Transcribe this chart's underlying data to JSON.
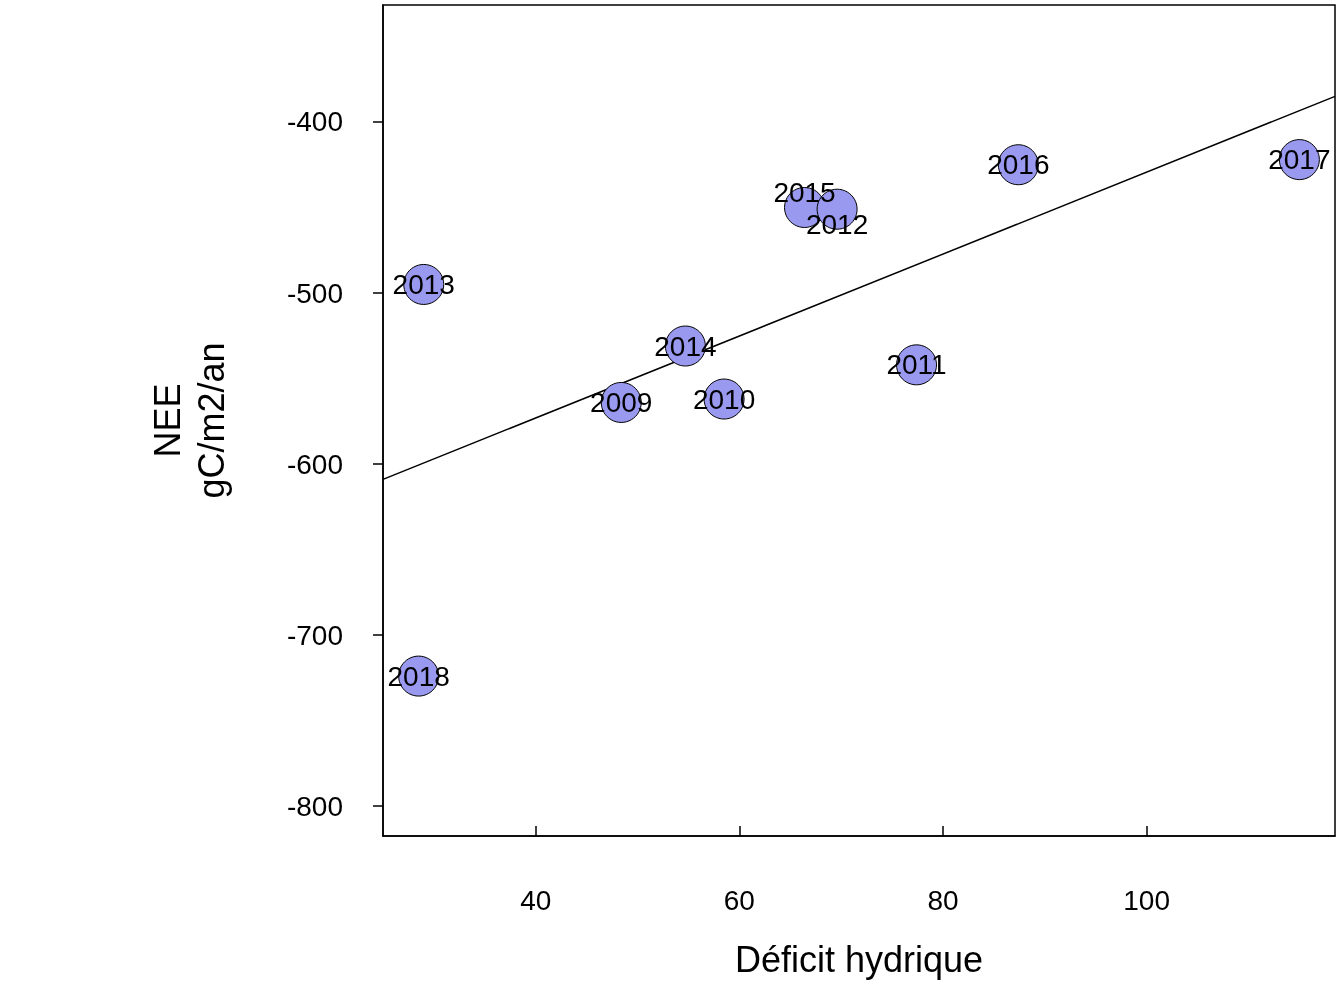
{
  "chart_data": {
    "type": "scatter",
    "xlabel": "Déficit hydrique",
    "ylabel": "NEE\ngC/m2/an",
    "xlim": [
      25,
      118.5
    ],
    "ylim": [
      -817.5,
      -331.6
    ],
    "xticks": [
      40,
      60,
      80,
      100
    ],
    "yticks": [
      -800,
      -700,
      -600,
      -500,
      -400
    ],
    "grid": false,
    "series": [
      {
        "marker": "circle",
        "color": "#9999f0",
        "x": [
          29.0,
          28.5,
          48.4,
          54.7,
          58.5,
          66.4,
          69.6,
          77.4,
          87.4,
          115.0
        ],
        "values": [
          -495,
          -724,
          -564,
          -531,
          -562,
          -450,
          -451,
          -542,
          -425,
          -422
        ]
      },
      {
        "type": "line",
        "marker": "none",
        "color": "#000000",
        "x": [
          25,
          118.5
        ],
        "values": [
          -609,
          -385
        ]
      }
    ],
    "annotations": [
      {
        "text": "2013",
        "x": 29.0,
        "y": -495
      },
      {
        "text": "2018",
        "x": 28.5,
        "y": -724
      },
      {
        "text": "2009",
        "x": 48.4,
        "y": -564
      },
      {
        "text": "2014",
        "x": 54.7,
        "y": -531
      },
      {
        "text": "2010",
        "x": 58.5,
        "y": -562
      },
      {
        "text": "2015",
        "x": 66.4,
        "y": -450
      },
      {
        "text": "2012",
        "x": 69.6,
        "y": -451
      },
      {
        "text": "2011",
        "x": 77.4,
        "y": -542
      },
      {
        "text": "2016",
        "x": 87.4,
        "y": -425
      },
      {
        "text": "2017",
        "x": 115.0,
        "y": -422
      }
    ]
  }
}
